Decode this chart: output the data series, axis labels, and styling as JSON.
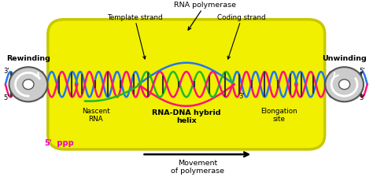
{
  "bg_color": "#ffffff",
  "yellow_box_color": "#f0f000",
  "yellow_box_edge": "#c8c800",
  "labels": {
    "rna_polymerase": "RNA polymerase",
    "template_strand": "Template strand",
    "coding_strand": "Coding strand",
    "nascent_rna": "Nascent\nRNA",
    "rna_dna_hybrid": "RNA-DNA hybrid\nhelix",
    "elongation_site": "Elongation\nsite",
    "rewinding": "Rewinding",
    "unwinding": "Unwinding",
    "movement": "Movement\nof polymerase",
    "3p_left": "3'",
    "5p_left": "5'",
    "5p_right": "5'",
    "3p_right": "3'",
    "3p_mid": "3'"
  },
  "strand_colors": {
    "blue": "#2277ee",
    "pink": "#ff1177",
    "green": "#22bb22"
  },
  "rung_color": "#333333",
  "spool_color": "#aaaaaa",
  "spool_edge": "#555555",
  "text_color": "#000000",
  "magenta_color": "#ee00bb",
  "axis_xlim": [
    0,
    10
  ],
  "axis_ylim": [
    0,
    5
  ]
}
